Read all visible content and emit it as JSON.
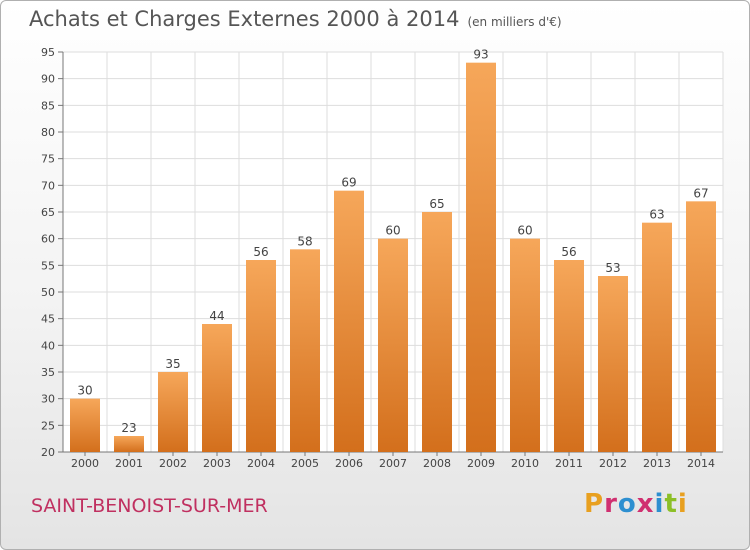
{
  "header": {
    "title": "Achats et Charges Externes 2000 à 2014",
    "subtitle": "(en milliers d'€)"
  },
  "footer": {
    "city": "SAINT-BENOIST-SUR-MER",
    "brand": "Proxiti",
    "brand_colors": [
      "#e8a020",
      "#d03070",
      "#2d8fd0",
      "#d03070",
      "#2d8fd0",
      "#8cbf26",
      "#e8a020"
    ]
  },
  "colors": {
    "bar_top": "#f6a75a",
    "bar_bottom": "#d36f1c",
    "grid": "#dddddd",
    "text": "#444444"
  },
  "chart_data": {
    "type": "bar",
    "categories": [
      "2000",
      "2001",
      "2002",
      "2003",
      "2004",
      "2005",
      "2006",
      "2007",
      "2008",
      "2009",
      "2010",
      "2011",
      "2012",
      "2013",
      "2014"
    ],
    "values": [
      30,
      23,
      35,
      44,
      56,
      58,
      69,
      60,
      65,
      93,
      60,
      56,
      53,
      63,
      67
    ],
    "ylim": [
      20,
      95
    ],
    "yticks": [
      20,
      25,
      30,
      35,
      40,
      45,
      50,
      55,
      60,
      65,
      70,
      75,
      80,
      85,
      90,
      95
    ],
    "grid": true,
    "legend": "none",
    "data_labels": true
  }
}
